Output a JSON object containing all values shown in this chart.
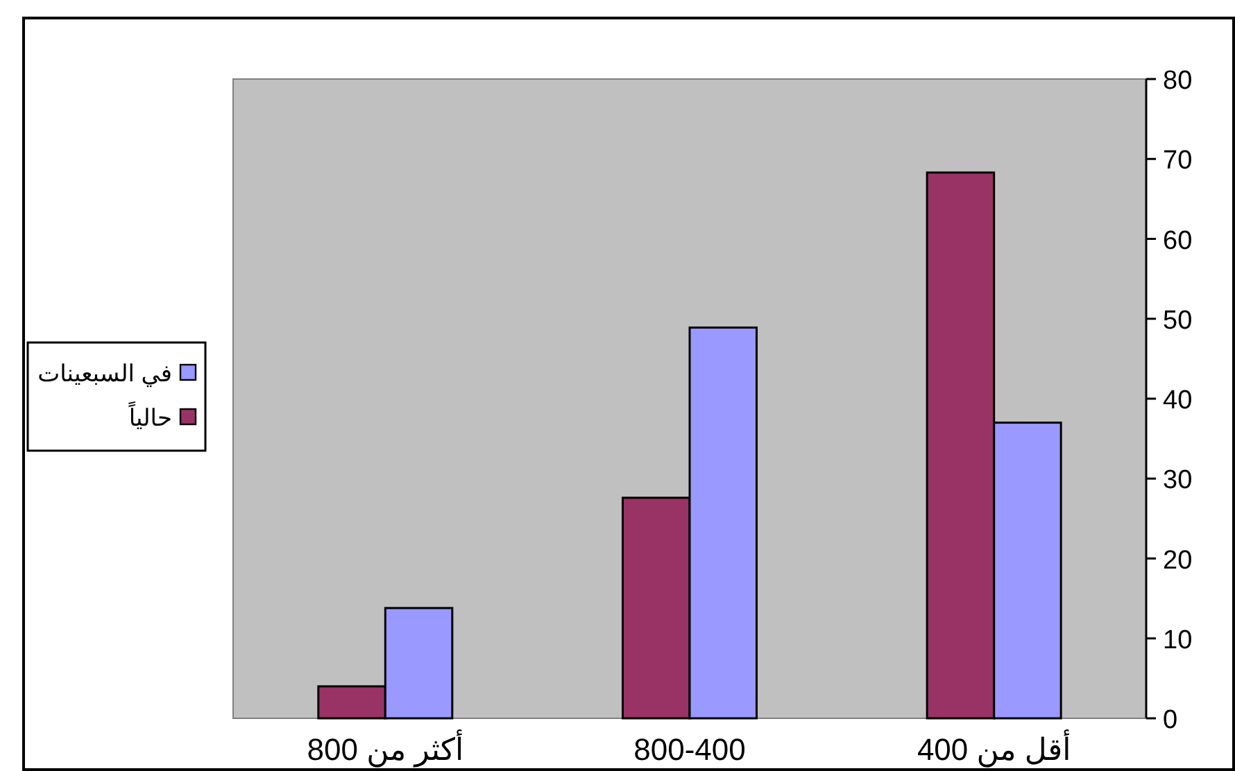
{
  "chart_data": {
    "type": "bar",
    "categories": [
      "أكثر من 800",
      "800-400",
      "أقل من 400"
    ],
    "series": [
      {
        "name": "حالياً",
        "color": "#993366",
        "values": [
          4.0,
          27.6,
          68.3
        ]
      },
      {
        "name": "في السبعينات",
        "color": "#9999ff",
        "values": [
          13.8,
          48.9,
          37.0
        ]
      }
    ],
    "ylim": [
      0,
      80
    ],
    "yticks": [
      0,
      10,
      20,
      30,
      40,
      50,
      60,
      70,
      80
    ],
    "legend": "left"
  }
}
